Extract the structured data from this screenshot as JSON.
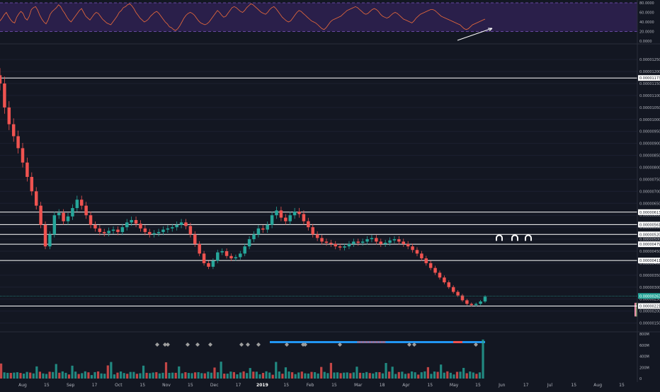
{
  "chart_data": [
    {
      "type": "line",
      "panel": "rsi",
      "bands": [
        20,
        80
      ],
      "y_ticks": [
        "80.0000",
        "60.0000",
        "40.0000",
        "20.0000",
        "0.0000"
      ],
      "ylim": [
        0,
        80
      ],
      "values": [
        42,
        48,
        55,
        60,
        52,
        45,
        40,
        38,
        50,
        57,
        62,
        58,
        48,
        44,
        52,
        66,
        70,
        72,
        65,
        54,
        46,
        40,
        36,
        44,
        56,
        62,
        66,
        70,
        76,
        72,
        64,
        58,
        50,
        44,
        40,
        46,
        52,
        58,
        64,
        68,
        60,
        52,
        48,
        44,
        50,
        56,
        60,
        58,
        52,
        46,
        42,
        38,
        36,
        34,
        40,
        46,
        52,
        60,
        64,
        70,
        72,
        76,
        78,
        74,
        68,
        60,
        54,
        48,
        44,
        40,
        42,
        46,
        52,
        56,
        60,
        62,
        58,
        52,
        46,
        40,
        36,
        30,
        28,
        24,
        22,
        26,
        32,
        40,
        48,
        54,
        58,
        60,
        58,
        54,
        48,
        42,
        38,
        36,
        34,
        36,
        40,
        46,
        52,
        58,
        64,
        60,
        54,
        50,
        52,
        58,
        64,
        70,
        72,
        70,
        66,
        62,
        60,
        64,
        70,
        74,
        78,
        76,
        72,
        68,
        64,
        60,
        58,
        56,
        60,
        66,
        70,
        72,
        68,
        62,
        56,
        50,
        46,
        42,
        40,
        42,
        48,
        54,
        60,
        64,
        62,
        58,
        54,
        50,
        46,
        42,
        40,
        38,
        34,
        30,
        26,
        24,
        28,
        34,
        40,
        44,
        46,
        48,
        50,
        52,
        56,
        60,
        64,
        66,
        68,
        70,
        72,
        70,
        66,
        62,
        58,
        56,
        58,
        62,
        66,
        68,
        66,
        62,
        56,
        52,
        50,
        48,
        50,
        54,
        58,
        60,
        58,
        54,
        50,
        46,
        44,
        42,
        40,
        38,
        42,
        48,
        52,
        56,
        58,
        60,
        62,
        64,
        66,
        66,
        64,
        60,
        56,
        52,
        50,
        48,
        46,
        44,
        42,
        40,
        38,
        36,
        34,
        30,
        26,
        24,
        26,
        30,
        34,
        36,
        38,
        40,
        42,
        44,
        46
      ]
    },
    {
      "type": "candlestick",
      "panel": "price",
      "y_ticks": [
        "0.00001250",
        "0.00001200",
        "0.00001150",
        "0.00001100",
        "0.00001050",
        "0.00001000",
        "0.00000950",
        "0.00000900",
        "0.00000850",
        "0.00000800",
        "0.00000750",
        "0.00000700",
        "0.00000650",
        "0.00000600",
        "0.00000550",
        "0.00000500",
        "0.00000450",
        "0.00000400",
        "0.00000350",
        "0.00000300",
        "0.00000250",
        "0.00000200",
        "0.00000150"
      ],
      "ylim": [
        1.25e-06,
        1.28e-05
      ],
      "x_labels": [
        "Aug",
        "15",
        "Sep",
        "17",
        "Oct",
        "15",
        "Nov",
        "15",
        "Dec",
        "17",
        "2019",
        "15",
        "Feb",
        "15",
        "Mar",
        "18",
        "Apr",
        "15",
        "May",
        "15",
        "Jun",
        "17",
        "Jul",
        "15",
        "Aug",
        "15"
      ],
      "series_close": [
        1.15e-05,
        1.05e-05,
        9.8e-06,
        9.3e-06,
        8.8e-06,
        8.2e-06,
        7.6e-06,
        7e-06,
        6.4e-06,
        5.6e-06,
        4.7e-06,
        5.2e-06,
        6e-06,
        6.1e-06,
        5.75e-06,
        5.95e-06,
        6.3e-06,
        6.65e-06,
        6.4e-06,
        6e-06,
        5.6e-06,
        5.45e-06,
        5.3e-06,
        5.25e-06,
        5.35e-06,
        5.4e-06,
        5.3e-06,
        5.5e-06,
        5.7e-06,
        5.8e-06,
        5.65e-06,
        5.45e-06,
        5.3e-06,
        5.2e-06,
        5.25e-06,
        5.3e-06,
        5.4e-06,
        5.45e-06,
        5.5e-06,
        5.6e-06,
        5.7e-06,
        5.55e-06,
        5.2e-06,
        4.8e-06,
        4.4e-06,
        4e-06,
        3.85e-06,
        4.1e-06,
        4.45e-06,
        4.5e-06,
        4.3e-06,
        4.2e-06,
        4.25e-06,
        4.4e-06,
        4.7e-06,
        5e-06,
        5.2e-06,
        5.45e-06,
        5.4e-06,
        5.6e-06,
        6e-06,
        6.2e-06,
        5.9e-06,
        5.75e-06,
        6e-06,
        6.15e-06,
        6.05e-06,
        5.75e-06,
        5.5e-06,
        5.2e-06,
        5.05e-06,
        4.9e-06,
        4.85e-06,
        4.8e-06,
        4.7e-06,
        4.65e-06,
        4.7e-06,
        4.8e-06,
        4.9e-06,
        4.85e-06,
        4.9e-06,
        5e-06,
        5.05e-06,
        4.9e-06,
        4.8e-06,
        4.85e-06,
        4.95e-06,
        5e-06,
        4.9e-06,
        4.8e-06,
        4.7e-06,
        4.55e-06,
        4.4e-06,
        4.2e-06,
        4e-06,
        3.8e-06,
        3.6e-06,
        3.4e-06,
        3.2e-06,
        3e-06,
        2.8e-06,
        2.65e-06,
        2.45e-06,
        2.3e-06,
        2.25e-06,
        2.3e-06,
        2.4e-06,
        2.6e-06
      ]
    },
    {
      "type": "bar",
      "panel": "volume",
      "y_ticks": [
        "800M",
        "600M",
        "400M",
        "200M",
        "0"
      ],
      "ylim": [
        0,
        800
      ],
      "unit": "M"
    }
  ],
  "price_lines": [
    {
      "price_label": "0.00001173",
      "value": 1.173e-05
    },
    {
      "price_label": "0.00000613",
      "value": 6.13e-06
    },
    {
      "price_label": "0.00000561",
      "value": 5.61e-06
    },
    {
      "price_label": "0.00000520",
      "value": 5.2e-06
    },
    {
      "price_label": "0.00000479",
      "value": 4.79e-06
    },
    {
      "price_label": "0.00000411",
      "value": 4.11e-06
    },
    {
      "price_label": "0.00000221",
      "value": 2.21e-06
    }
  ],
  "last_price": {
    "label": "0.00000263",
    "value": 2.63e-06
  },
  "colors": {
    "background": "#131722",
    "up": "#26a69a",
    "down": "#ef5350",
    "rsi_line": "#ef6c3a",
    "rsi_band_fill": "#2a1f4a",
    "rsi_band_line": "#7e57c2",
    "hline": "#ffffff",
    "profile_up": "#4caf50",
    "profile_down": "#f48fb1",
    "axis_text": "#b2b5be",
    "last_price": "#26a69a",
    "signal_strip": "#2196f3"
  }
}
